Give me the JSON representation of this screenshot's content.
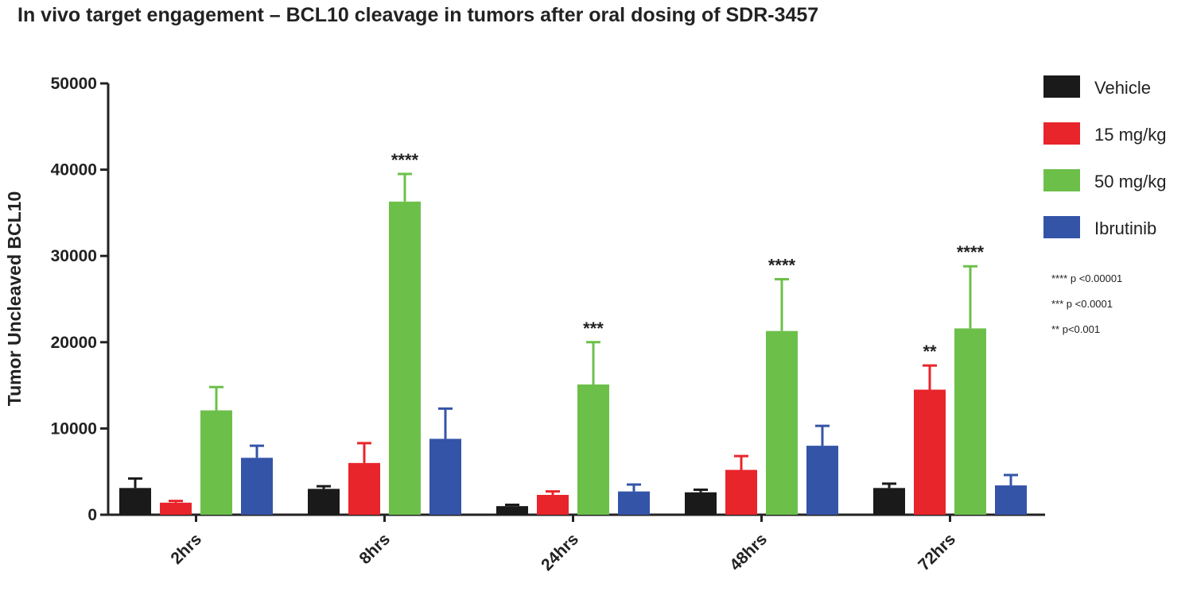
{
  "chart_data": {
    "type": "bar",
    "title": "In vivo target engagement – BCL10 cleavage in tumors after oral dosing of SDR-3457",
    "xlabel": "",
    "ylabel": "Tumor Uncleaved BCL10",
    "ylim": [
      0,
      50000
    ],
    "yticks": [
      0,
      10000,
      20000,
      30000,
      40000,
      50000
    ],
    "categories": [
      "2hrs",
      "8hrs",
      "24hrs",
      "48hrs",
      "72hrs"
    ],
    "series": [
      {
        "name": "Vehicle",
        "color": "#1a1a1a",
        "values": [
          3100,
          3000,
          1000,
          2600,
          3100
        ],
        "errors": [
          1100,
          300,
          150,
          300,
          500
        ]
      },
      {
        "name": "15 mg/kg",
        "color": "#e8252b",
        "values": [
          1400,
          6000,
          2300,
          5200,
          14500
        ],
        "errors": [
          200,
          2300,
          400,
          1600,
          2800
        ]
      },
      {
        "name": "50 mg/kg",
        "color": "#6cc04a",
        "values": [
          12100,
          36300,
          15100,
          21300,
          21600
        ],
        "errors": [
          2700,
          3200,
          4900,
          6000,
          7200
        ]
      },
      {
        "name": "Ibrutinib",
        "color": "#3454a8",
        "values": [
          6600,
          8800,
          2700,
          8000,
          3400
        ],
        "errors": [
          1400,
          3500,
          800,
          2300,
          1200
        ]
      }
    ],
    "annotations": [
      {
        "text": "****",
        "category": "8hrs",
        "series": "50 mg/kg"
      },
      {
        "text": "***",
        "category": "24hrs",
        "series": "50 mg/kg"
      },
      {
        "text": "****",
        "category": "48hrs",
        "series": "50 mg/kg"
      },
      {
        "text": "**",
        "category": "72hrs",
        "series": "15 mg/kg"
      },
      {
        "text": "****",
        "category": "72hrs",
        "series": "50 mg/kg"
      }
    ],
    "significance_notes": [
      "**** p <0.00001",
      "*** p <0.0001",
      "** p<0.001"
    ],
    "legend_position": "right",
    "grid": false
  }
}
